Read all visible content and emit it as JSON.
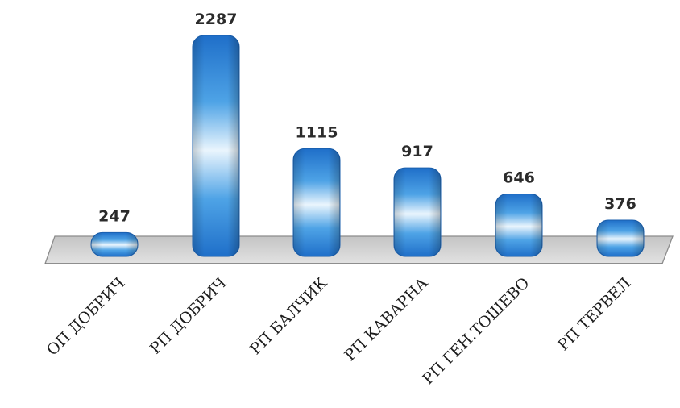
{
  "chart_data": {
    "type": "bar",
    "title": "",
    "xlabel": "",
    "ylabel": "",
    "categories": [
      "ОП ДОБРИЧ",
      "РП ДОБРИЧ",
      "РП БАЛЧИК",
      "РП КАВАРНА",
      "РП ГЕН.ТОШЕВО",
      "РП ТЕРВЕЛ"
    ],
    "values": [
      247,
      2287,
      1115,
      917,
      646,
      376
    ],
    "ylim": [
      0,
      2287
    ],
    "grid": false,
    "legend": "none",
    "colors": {
      "bar_dark": "#1f6fc9",
      "bar_mid": "#5aaeea",
      "bar_light": "#eaf5fd",
      "floor_fill": "#d9d9d9",
      "floor_stroke": "#8c8c8c"
    }
  }
}
